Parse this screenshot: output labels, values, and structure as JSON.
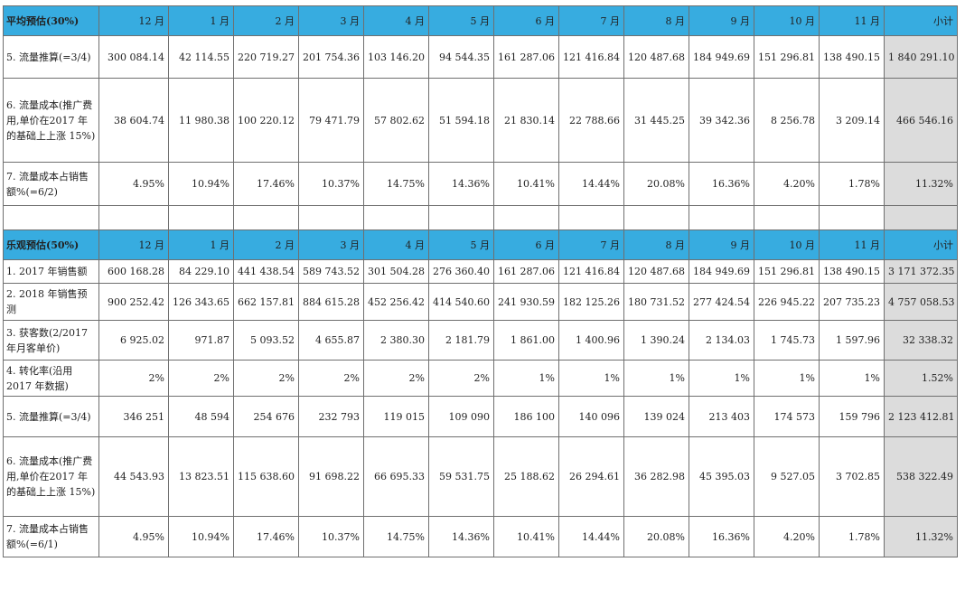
{
  "months": [
    "12 月",
    "1 月",
    "2 月",
    "3 月",
    "4 月",
    "5 月",
    "6 月",
    "7 月",
    "8 月",
    "9 月",
    "10 月",
    "11 月"
  ],
  "subtotal_label": "小计",
  "sections": [
    {
      "title": "平均预估(30%)",
      "rows": [
        {
          "label": "5. 流量推算(=3/4)",
          "values": [
            "300 084.14",
            "42 114.55",
            "220 719.27",
            "201 754.36",
            "103 146.20",
            "94 544.35",
            "161 287.06",
            "121 416.84",
            "120 487.68",
            "184 949.69",
            "151 296.81",
            "138 490.15"
          ],
          "total": "1 840 291.10"
        },
        {
          "label": "6. 流量成本(推广费用,单价在2017 年的基础上上涨 15%)",
          "values": [
            "38 604.74",
            "11 980.38",
            "100 220.12",
            "79 471.79",
            "57 802.62",
            "51 594.18",
            "21 830.14",
            "22 788.66",
            "31 445.25",
            "39 342.36",
            "8 256.78",
            "3 209.14"
          ],
          "total": "466 546.16"
        },
        {
          "label": "7. 流量成本占销售额%(=6/2)",
          "values": [
            "4.95%",
            "10.94%",
            "17.46%",
            "10.37%",
            "14.75%",
            "14.36%",
            "10.41%",
            "14.44%",
            "20.08%",
            "16.36%",
            "4.20%",
            "1.78%"
          ],
          "total": "11.32%"
        }
      ]
    },
    {
      "title": "乐观预估(50%)",
      "rows": [
        {
          "label": "1. 2017 年销售额",
          "values": [
            "600 168.28",
            "84 229.10",
            "441 438.54",
            "589 743.52",
            "301 504.28",
            "276 360.40",
            "161 287.06",
            "121 416.84",
            "120 487.68",
            "184 949.69",
            "151 296.81",
            "138 490.15"
          ],
          "total": "3 171 372.35"
        },
        {
          "label": "2. 2018 年销售预测",
          "values": [
            "900 252.42",
            "126 343.65",
            "662 157.81",
            "884 615.28",
            "452 256.42",
            "414 540.60",
            "241 930.59",
            "182 125.26",
            "180 731.52",
            "277 424.54",
            "226 945.22",
            "207 735.23"
          ],
          "total": "4 757 058.53"
        },
        {
          "label": "3. 获客数(2/2017 年月客单价)",
          "values": [
            "6 925.02",
            "971.87",
            "5 093.52",
            "4 655.87",
            "2 380.30",
            "2 181.79",
            "1 861.00",
            "1 400.96",
            "1 390.24",
            "2 134.03",
            "1 745.73",
            "1 597.96"
          ],
          "total": "32 338.32"
        },
        {
          "label": "4. 转化率(沿用2017 年数据)",
          "values": [
            "2%",
            "2%",
            "2%",
            "2%",
            "2%",
            "2%",
            "1%",
            "1%",
            "1%",
            "1%",
            "1%",
            "1%"
          ],
          "total": "1.52%"
        },
        {
          "label": "5. 流量推算(=3/4)",
          "values": [
            "346 251",
            "48 594",
            "254 676",
            "232 793",
            "119 015",
            "109 090",
            "186 100",
            "140 096",
            "139 024",
            "213 403",
            "174 573",
            "159 796"
          ],
          "total": "2 123 412.81"
        },
        {
          "label": "6. 流量成本(推广费用,单价在2017 年的基础上上涨 15%)",
          "values": [
            "44 543.93",
            "13 823.51",
            "115 638.60",
            "91 698.22",
            "66 695.33",
            "59 531.75",
            "25 188.62",
            "26 294.61",
            "36 282.98",
            "45 395.03",
            "9 527.05",
            "3 702.85"
          ],
          "total": "538 322.49"
        },
        {
          "label": "7. 流量成本占销售额%(=6/1)",
          "values": [
            "4.95%",
            "10.94%",
            "17.46%",
            "10.37%",
            "14.75%",
            "14.36%",
            "10.41%",
            "14.44%",
            "20.08%",
            "16.36%",
            "4.20%",
            "1.78%"
          ],
          "total": "11.32%"
        }
      ]
    }
  ]
}
